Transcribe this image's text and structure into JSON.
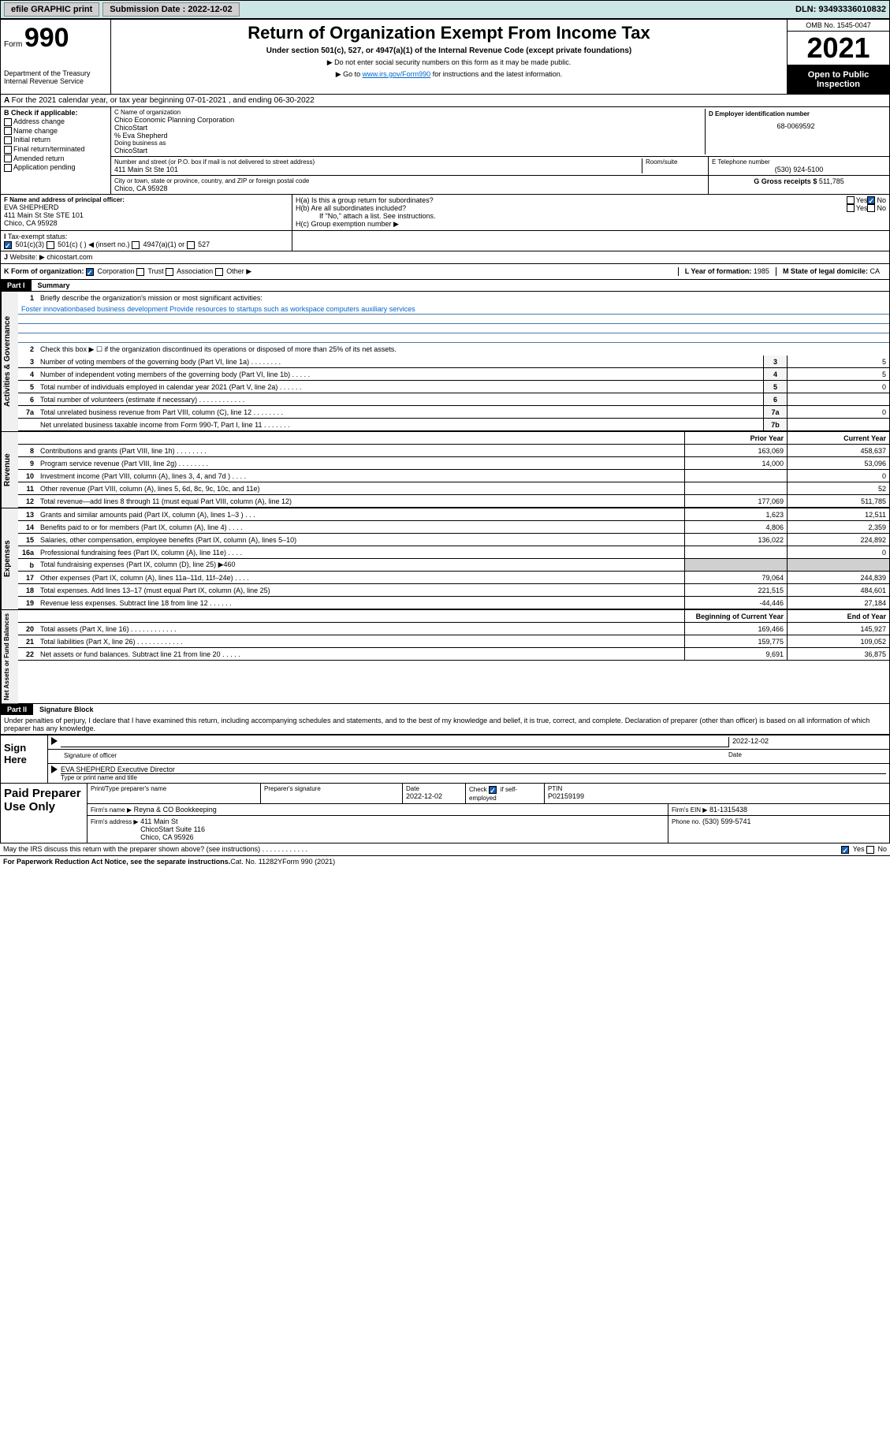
{
  "topbar": {
    "efile": "efile GRAPHIC print",
    "sub_label": "Submission Date : 2022-12-02",
    "dln": "DLN: 93493336010832"
  },
  "header": {
    "form": "Form",
    "num": "990",
    "title": "Return of Organization Exempt From Income Tax",
    "sub": "Under section 501(c), 527, or 4947(a)(1) of the Internal Revenue Code (except private foundations)",
    "note1": "▶ Do not enter social security numbers on this form as it may be made public.",
    "note2_pre": "▶ Go to ",
    "note2_link": "www.irs.gov/Form990",
    "note2_post": " for instructions and the latest information.",
    "dept": "Department of the Treasury\nInternal Revenue Service",
    "omb": "OMB No. 1545-0047",
    "year": "2021",
    "open": "Open to Public Inspection"
  },
  "rowA": "For the 2021 calendar year, or tax year beginning 07-01-2021  , and ending 06-30-2022",
  "sectionB": {
    "hdr": "B Check if applicable:",
    "items": [
      "Address change",
      "Name change",
      "Initial return",
      "Final return/terminated",
      "Amended return",
      "Application pending"
    ]
  },
  "sectionC": {
    "label": "C Name of organization",
    "name": "Chico Economic Planning Corporation\nChicoStart",
    "care": "% Eva Shepherd",
    "dba_label": "Doing business as",
    "dba": "ChicoStart",
    "addr_label": "Number and street (or P.O. box if mail is not delivered to street address)",
    "addr": "411 Main St Ste 101",
    "room_label": "Room/suite",
    "city_label": "City or town, state or province, country, and ZIP or foreign postal code",
    "city": "Chico, CA  95928"
  },
  "sectionD": {
    "label": "D Employer identification number",
    "val": "68-0069592"
  },
  "sectionE": {
    "label": "E Telephone number",
    "val": "(530) 924-5100"
  },
  "sectionG": {
    "label": "G Gross receipts $",
    "val": "511,785"
  },
  "sectionF": {
    "label": "F Name and address of principal officer:",
    "name": "EVA SHEPHERD",
    "addr": "411 Main St Ste STE 101\nChico, CA  95928"
  },
  "sectionH": {
    "a": "H(a)  Is this a group return for subordinates?",
    "b": "H(b)  Are all subordinates included?",
    "b_note": "If \"No,\" attach a list. See instructions.",
    "c": "H(c)  Group exemption number ▶",
    "yes": "Yes",
    "no": "No"
  },
  "rowI": {
    "label": "Tax-exempt status:",
    "opts": [
      "501(c)(3)",
      "501(c) (  ) ◀ (insert no.)",
      "4947(a)(1) or",
      "527"
    ]
  },
  "rowJ": {
    "label": "Website: ▶",
    "val": "chicostart.com"
  },
  "rowK": {
    "label": "K Form of organization:",
    "opts": [
      "Corporation",
      "Trust",
      "Association",
      "Other ▶"
    ]
  },
  "rowL": {
    "label": "L Year of formation:",
    "val": "1985"
  },
  "rowM": {
    "label": "M State of legal domicile:",
    "val": "CA"
  },
  "part1": {
    "hdr": "Part I",
    "title": "Summary",
    "vtab1": "Activities & Governance",
    "line1": "Briefly describe the organization's mission or most significant activities:",
    "mission": "Foster innovationbased business development Provide resources to startups such as workspace computers auxiliary services",
    "line2": "Check this box ▶ ☐  if the organization discontinued its operations or disposed of more than 25% of its net assets.",
    "lines_gov": [
      {
        "n": "3",
        "t": "Number of voting members of the governing body (Part VI, line 1a)   .    .    .    .    .    .    .    .",
        "b": "3",
        "v": "5"
      },
      {
        "n": "4",
        "t": "Number of independent voting members of the governing body (Part VI, line 1b)   .    .    .    .    .",
        "b": "4",
        "v": "5"
      },
      {
        "n": "5",
        "t": "Total number of individuals employed in calendar year 2021 (Part V, line 2a)   .    .    .    .    .    .",
        "b": "5",
        "v": "0"
      },
      {
        "n": "6",
        "t": "Total number of volunteers (estimate if necessary)   .    .    .    .    .    .    .    .    .    .    .    .",
        "b": "6",
        "v": ""
      },
      {
        "n": "7a",
        "t": "Total unrelated business revenue from Part VIII, column (C), line 12   .    .    .    .    .    .    .    .",
        "b": "7a",
        "v": "0"
      },
      {
        "n": "",
        "t": "Net unrelated business taxable income from Form 990-T, Part I, line 11   .    .    .    .    .    .    .",
        "b": "7b",
        "v": ""
      }
    ],
    "vtab2": "Revenue",
    "col_prior": "Prior Year",
    "col_curr": "Current Year",
    "lines_rev": [
      {
        "n": "8",
        "t": "Contributions and grants (Part VIII, line 1h)   .    .    .    .    .    .    .    .",
        "p": "163,069",
        "c": "458,637"
      },
      {
        "n": "9",
        "t": "Program service revenue (Part VIII, line 2g)   .    .    .    .    .    .    .    .",
        "p": "14,000",
        "c": "53,096"
      },
      {
        "n": "10",
        "t": "Investment income (Part VIII, column (A), lines 3, 4, and 7d )   .    .    .    .",
        "p": "",
        "c": "0"
      },
      {
        "n": "11",
        "t": "Other revenue (Part VIII, column (A), lines 5, 6d, 8c, 9c, 10c, and 11e)",
        "p": "",
        "c": "52"
      },
      {
        "n": "12",
        "t": "Total revenue—add lines 8 through 11 (must equal Part VIII, column (A), line 12)",
        "p": "177,069",
        "c": "511,785"
      }
    ],
    "vtab3": "Expenses",
    "lines_exp": [
      {
        "n": "13",
        "t": "Grants and similar amounts paid (Part IX, column (A), lines 1–3 )   .    .    .",
        "p": "1,623",
        "c": "12,511"
      },
      {
        "n": "14",
        "t": "Benefits paid to or for members (Part IX, column (A), line 4)   .    .    .    .",
        "p": "4,806",
        "c": "2,359"
      },
      {
        "n": "15",
        "t": "Salaries, other compensation, employee benefits (Part IX, column (A), lines 5–10)",
        "p": "136,022",
        "c": "224,892"
      },
      {
        "n": "16a",
        "t": "Professional fundraising fees (Part IX, column (A), line 11e)   .    .    .    .",
        "p": "",
        "c": "0"
      },
      {
        "n": "b",
        "t": "Total fundraising expenses (Part IX, column (D), line 25) ▶460",
        "p": "shaded",
        "c": "shaded"
      },
      {
        "n": "17",
        "t": "Other expenses (Part IX, column (A), lines 11a–11d, 11f–24e)   .    .    .    .",
        "p": "79,064",
        "c": "244,839"
      },
      {
        "n": "18",
        "t": "Total expenses. Add lines 13–17 (must equal Part IX, column (A), line 25)",
        "p": "221,515",
        "c": "484,601"
      },
      {
        "n": "19",
        "t": "Revenue less expenses. Subtract line 18 from line 12   .    .    .    .    .    .",
        "p": "-44,446",
        "c": "27,184"
      }
    ],
    "vtab4": "Net Assets or Fund Balances",
    "col_beg": "Beginning of Current Year",
    "col_end": "End of Year",
    "lines_net": [
      {
        "n": "20",
        "t": "Total assets (Part X, line 16)   .    .    .    .    .    .    .    .    .    .    .    .",
        "p": "169,466",
        "c": "145,927"
      },
      {
        "n": "21",
        "t": "Total liabilities (Part X, line 26)   .    .    .    .    .    .    .    .    .    .    .    .",
        "p": "159,775",
        "c": "109,052"
      },
      {
        "n": "22",
        "t": "Net assets or fund balances. Subtract line 21 from line 20   .    .    .    .    .",
        "p": "9,691",
        "c": "36,875"
      }
    ]
  },
  "part2": {
    "hdr": "Part II",
    "title": "Signature Block",
    "decl": "Under penalties of perjury, I declare that I have examined this return, including accompanying schedules and statements, and to the best of my knowledge and belief, it is true, correct, and complete. Declaration of preparer (other than officer) is based on all information of which preparer has any knowledge."
  },
  "sign": {
    "label": "Sign Here",
    "sig_label": "Signature of officer",
    "date_label": "Date",
    "date": "2022-12-02",
    "name": "EVA SHEPHERD Executive Director",
    "name_label": "Type or print name and title"
  },
  "paid": {
    "label": "Paid Preparer Use Only",
    "h1": "Print/Type preparer's name",
    "h2": "Preparer's signature",
    "h3": "Date",
    "date": "2022-12-02",
    "h4_pre": "Check",
    "h4_post": "if self-employed",
    "h5": "PTIN",
    "ptin": "P02159199",
    "firm_label": "Firm's name    ▶",
    "firm": "Reyna & CO Bookkeeping",
    "ein_label": "Firm's EIN ▶",
    "ein": "81-1315438",
    "addr_label": "Firm's address ▶",
    "addr": "411 Main St\nChicoStart Suite 116\nChico, CA  95926",
    "phone_label": "Phone no.",
    "phone": "(530) 599-5741"
  },
  "footer": {
    "q": "May the IRS discuss this return with the preparer shown above? (see instructions)   .    .    .    .    .    .    .    .    .    .    .    .",
    "yes": "Yes",
    "no": "No",
    "paperwork": "For Paperwork Reduction Act Notice, see the separate instructions.",
    "cat": "Cat. No. 11282Y",
    "form": "Form 990 (2021)"
  }
}
